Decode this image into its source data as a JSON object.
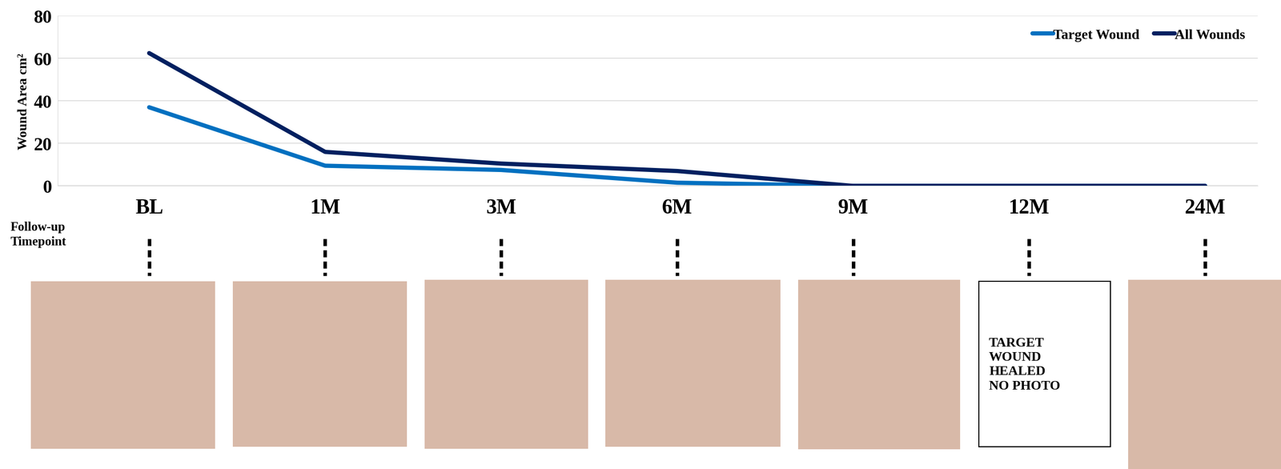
{
  "chart_data": {
    "type": "line",
    "y_label": "Wound Area cm²",
    "x_label": "Follow-up\nTimepoint",
    "categories": [
      "BL",
      "1M",
      "3M",
      "6M",
      "9M",
      "12M",
      "24M"
    ],
    "series": [
      {
        "name": "Target Wound",
        "color": "#0070c0",
        "values": [
          37,
          9.5,
          7.5,
          1.5,
          0,
          0,
          0
        ]
      },
      {
        "name": "All Wounds",
        "color": "#002060",
        "values": [
          62.5,
          16,
          10.5,
          7,
          0,
          0,
          0
        ]
      }
    ],
    "ylim": [
      0,
      80
    ],
    "yticks": [
      0,
      20,
      40,
      60,
      80
    ],
    "grid": true,
    "legend": "upper right",
    "photo_note": {
      "category": "12M",
      "text": "TARGET\nWOUND\nHEALED\nNO PHOTO"
    }
  }
}
